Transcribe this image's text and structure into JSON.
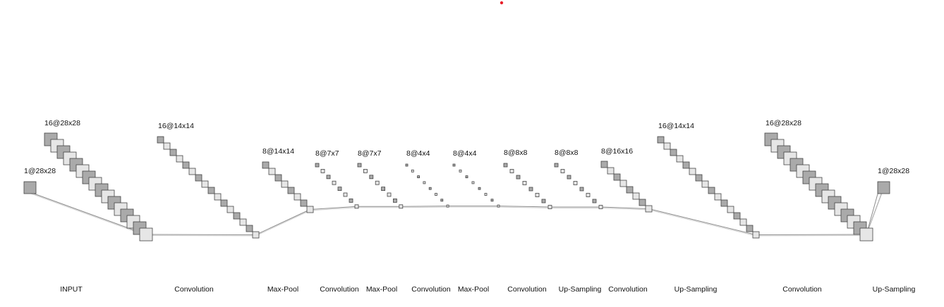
{
  "diagram": {
    "colors": {
      "dark": "#aaaaaa",
      "light": "#e6e6e6",
      "stroke": "#444444",
      "line": "#8c8c8c",
      "dot": "#e8202a"
    },
    "layers": [
      {
        "dims": "1@28x28",
        "count": 1,
        "op": "INPUT"
      },
      {
        "dims": "16@28x28",
        "count": 16,
        "op": "Convolution"
      },
      {
        "dims": "16@14x14",
        "count": 16,
        "op": "Max-Pool"
      },
      {
        "dims": "8@14x14",
        "count": 8,
        "op": "Convolution"
      },
      {
        "dims": "8@7x7",
        "count": 8,
        "op": "Max-Pool"
      },
      {
        "dims": "8@7x7",
        "count": 8,
        "op": "Convolution"
      },
      {
        "dims": "8@4x4",
        "count": 8,
        "op": "Max-Pool"
      },
      {
        "dims": "8@4x4",
        "count": 8,
        "op": "Convolution"
      },
      {
        "dims": "8@8x8",
        "count": 8,
        "op": "Up-Sampling"
      },
      {
        "dims": "8@8x8",
        "count": 8,
        "op": "Convolution"
      },
      {
        "dims": "8@16x16",
        "count": 8,
        "op": "Up-Sampling"
      },
      {
        "dims": "16@14x14",
        "count": 16,
        "op": "Convolution"
      },
      {
        "dims": "16@28x28",
        "count": 16,
        "op": "Up-Sampling"
      },
      {
        "dims": "1@28x28",
        "count": 1,
        "op": ""
      }
    ]
  }
}
